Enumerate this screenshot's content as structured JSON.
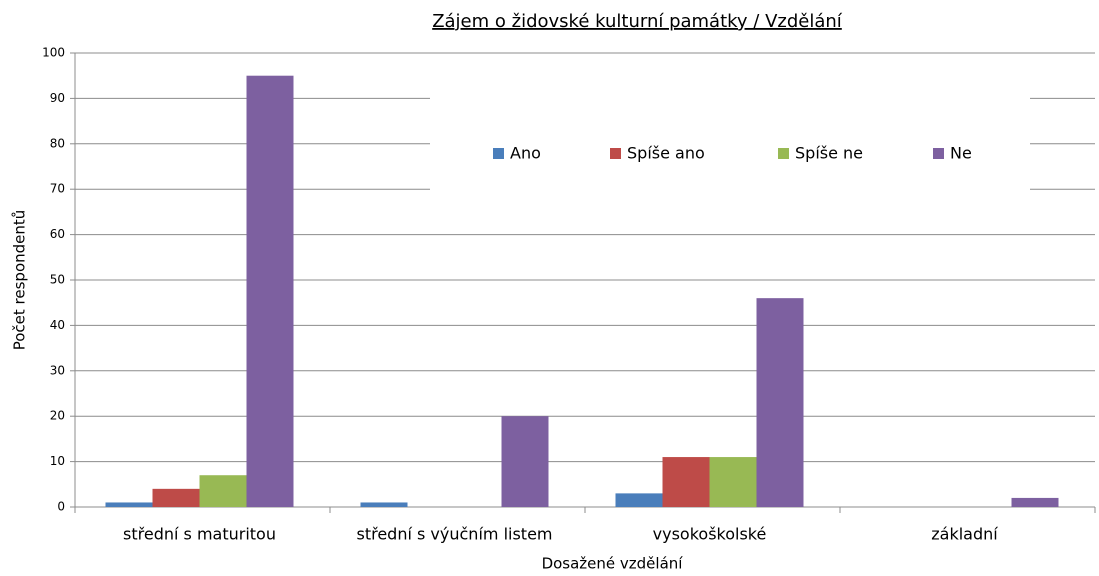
{
  "chart_data": {
    "type": "bar",
    "title": "Zájem o židovské kulturní památky / Vzdělání",
    "x_label": "Dosažené vzdělání",
    "y_label": "Počet respondentů",
    "categories": [
      "střední s maturitou",
      "střední s výučním listem",
      "vysokoškolské",
      "základní"
    ],
    "series": [
      {
        "name": "Ano",
        "color": "#4a7ebb",
        "values": [
          1,
          1,
          3,
          0
        ]
      },
      {
        "name": "Spíše ano",
        "color": "#be4b48",
        "values": [
          4,
          0,
          11,
          0
        ]
      },
      {
        "name": "Spíše ne",
        "color": "#98b954",
        "values": [
          7,
          0,
          11,
          0
        ]
      },
      {
        "name": "Ne",
        "color": "#7d60a0",
        "values": [
          95,
          20,
          46,
          2
        ]
      }
    ],
    "ylim": [
      0,
      100
    ],
    "yticks": [
      0,
      10,
      20,
      30,
      40,
      50,
      60,
      70,
      80,
      90,
      100
    ],
    "grid": true,
    "legend": "top"
  }
}
